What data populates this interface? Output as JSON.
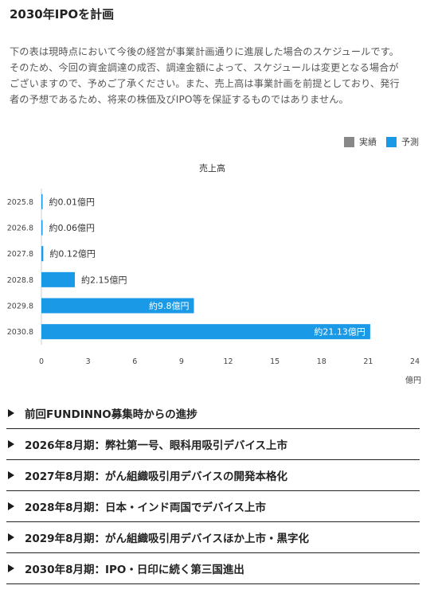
{
  "page": {
    "title": "2030年IPOを計画",
    "intro_lines": [
      "下の表は現時点において今後の経営が事業計画通りに進展した場合のスケジュールです。",
      "そのため、今回の資金調達の成否、調達金額によって、スケジュールは変更となる場合が",
      "ございますので、予めご了承ください。また、売上高は事業計画を前提としており、発行",
      "者の予想であるため、将来の株価及びIPO等を保証するものではありません。"
    ]
  },
  "legend": [
    {
      "label": "実績",
      "color": "#888888"
    },
    {
      "label": "予測",
      "color": "#1a9ae6"
    }
  ],
  "chart_data": {
    "type": "bar",
    "orientation": "horizontal",
    "title": "売上高",
    "categories": [
      "2025.8",
      "2026.8",
      "2027.8",
      "2028.8",
      "2029.8",
      "2030.8"
    ],
    "values": [
      0.01,
      0.06,
      0.12,
      2.15,
      9.8,
      21.13
    ],
    "data_labels": [
      "約0.01億円",
      "約0.06億円",
      "約0.12億円",
      "約2.15億円",
      "約9.8億円",
      "約21.13億円"
    ],
    "series_status": [
      "予測",
      "予測",
      "予測",
      "予測",
      "予測",
      "予測"
    ],
    "xlim": [
      0,
      24
    ],
    "xticks": [
      "0",
      "3",
      "6",
      "9",
      "12",
      "15",
      "18",
      "21",
      "24"
    ],
    "xunit": "億円",
    "grid": false,
    "legend_position": "top-right",
    "colors": {
      "actual": "#888888",
      "forecast": "#1a9ae6"
    }
  },
  "accordion": [
    {
      "label": "前回FUNDINNO募集時からの進捗"
    },
    {
      "label": "2026年8月期：弊社第一号、眼科用吸引デバイス上市"
    },
    {
      "label": "2027年8月期：がん組織吸引用デバイスの開発本格化"
    },
    {
      "label": "2028年8月期：日本・インド両国でデバイス上市"
    },
    {
      "label": "2029年8月期：がん組織吸引用デバイスほか上市・黒字化"
    },
    {
      "label": "2030年8月期：IPO・日印に続く第三国進出"
    }
  ]
}
